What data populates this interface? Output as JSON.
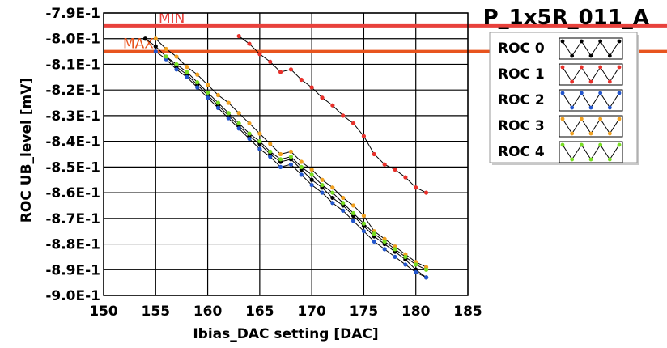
{
  "chart_data": {
    "type": "line",
    "title": "P_1x5R_011_A",
    "xlabel": "Ibias_DAC setting [DAC]",
    "ylabel": "ROC UB_level [mV]",
    "xlim": [
      150,
      185
    ],
    "ylim": [
      -0.9,
      -0.79
    ],
    "x_ticks": [
      150,
      155,
      160,
      165,
      170,
      175,
      180,
      185
    ],
    "x_tick_labels": [
      "150",
      "155",
      "160",
      "165",
      "170",
      "175",
      "180",
      "185"
    ],
    "y_ticks": [
      -0.79,
      -0.8,
      -0.81,
      -0.82,
      -0.83,
      -0.84,
      -0.85,
      -0.86,
      -0.87,
      -0.88,
      -0.89,
      -0.9
    ],
    "y_tick_labels": [
      "-7.9E-1",
      "-8.0E-1",
      "-8.1E-1",
      "-8.2E-1",
      "-8.3E-1",
      "-8.4E-1",
      "-8.5E-1",
      "-8.6E-1",
      "-8.7E-1",
      "-8.8E-1",
      "-8.9E-1",
      "-9.0E-1"
    ],
    "grid": true,
    "legend_position": "right",
    "limits": [
      {
        "label": "MIN",
        "y": -0.795,
        "color": "#e8413c"
      },
      {
        "label": "MAX",
        "y": -0.805,
        "color": "#e8541e"
      }
    ],
    "series": [
      {
        "name": "ROC 0",
        "color": "#000000",
        "x": [
          154,
          155,
          156,
          157,
          158,
          159,
          160,
          161,
          162,
          163,
          164,
          165,
          166,
          167,
          168,
          169,
          170,
          171,
          172,
          173,
          174,
          175,
          176,
          177,
          178,
          179,
          180,
          181
        ],
        "y": [
          -0.8,
          -0.803,
          -0.807,
          -0.811,
          -0.814,
          -0.818,
          -0.822,
          -0.826,
          -0.83,
          -0.834,
          -0.838,
          -0.841,
          -0.845,
          -0.848,
          -0.847,
          -0.851,
          -0.855,
          -0.858,
          -0.862,
          -0.865,
          -0.869,
          -0.873,
          -0.877,
          -0.88,
          -0.883,
          -0.886,
          -0.89,
          -0.893
        ]
      },
      {
        "name": "ROC 1",
        "color": "#e8302a",
        "x": [
          163,
          164,
          165,
          166,
          167,
          168,
          169,
          170,
          171,
          172,
          173,
          174,
          175,
          176,
          177,
          178,
          179,
          180,
          181
        ],
        "y": [
          -0.799,
          -0.802,
          -0.806,
          -0.809,
          -0.813,
          -0.812,
          -0.816,
          -0.819,
          -0.823,
          -0.826,
          -0.83,
          -0.833,
          -0.838,
          -0.845,
          -0.849,
          -0.851,
          -0.854,
          -0.858,
          -0.86
        ]
      },
      {
        "name": "ROC 2",
        "color": "#2255cc",
        "x": [
          155,
          156,
          157,
          158,
          159,
          160,
          161,
          162,
          163,
          164,
          165,
          166,
          167,
          168,
          169,
          170,
          171,
          172,
          173,
          174,
          175,
          176,
          177,
          178,
          179,
          180,
          181
        ],
        "y": [
          -0.805,
          -0.808,
          -0.812,
          -0.815,
          -0.819,
          -0.823,
          -0.827,
          -0.831,
          -0.835,
          -0.839,
          -0.843,
          -0.846,
          -0.85,
          -0.849,
          -0.853,
          -0.857,
          -0.86,
          -0.864,
          -0.867,
          -0.871,
          -0.875,
          -0.879,
          -0.882,
          -0.885,
          -0.888,
          -0.891,
          -0.893
        ]
      },
      {
        "name": "ROC 3",
        "color": "#f0a020",
        "x": [
          155,
          156,
          157,
          158,
          159,
          160,
          161,
          162,
          163,
          164,
          165,
          166,
          167,
          168,
          169,
          170,
          171,
          172,
          173,
          174,
          175,
          176,
          177,
          178,
          179,
          180,
          181
        ],
        "y": [
          -0.8,
          -0.804,
          -0.807,
          -0.811,
          -0.814,
          -0.818,
          -0.822,
          -0.825,
          -0.829,
          -0.833,
          -0.837,
          -0.841,
          -0.845,
          -0.844,
          -0.848,
          -0.851,
          -0.855,
          -0.858,
          -0.862,
          -0.865,
          -0.869,
          -0.875,
          -0.878,
          -0.881,
          -0.884,
          -0.887,
          -0.889
        ]
      },
      {
        "name": "ROC 4",
        "color": "#77dd22",
        "x": [
          156,
          157,
          158,
          159,
          160,
          161,
          162,
          163,
          164,
          165,
          166,
          167,
          168,
          169,
          170,
          171,
          172,
          173,
          174,
          175,
          176,
          177,
          178,
          179,
          180,
          181
        ],
        "y": [
          -0.807,
          -0.81,
          -0.813,
          -0.817,
          -0.821,
          -0.825,
          -0.829,
          -0.833,
          -0.837,
          -0.84,
          -0.844,
          -0.847,
          -0.846,
          -0.85,
          -0.853,
          -0.857,
          -0.86,
          -0.864,
          -0.868,
          -0.872,
          -0.876,
          -0.879,
          -0.882,
          -0.885,
          -0.888,
          -0.89
        ]
      }
    ]
  }
}
